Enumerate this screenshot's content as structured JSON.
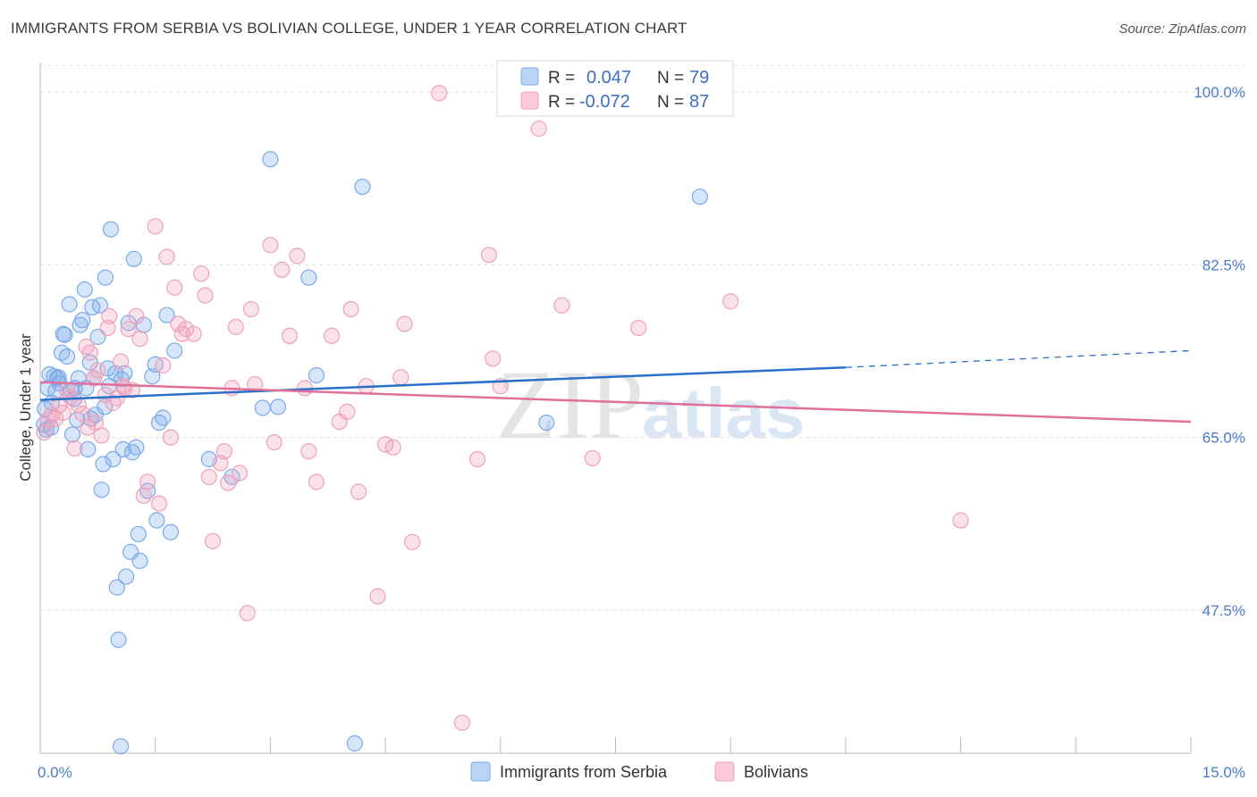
{
  "title": "IMMIGRANTS FROM SERBIA VS BOLIVIAN COLLEGE, UNDER 1 YEAR CORRELATION CHART",
  "source": "Source: ZipAtlas.com",
  "watermark": {
    "zip": "ZIP",
    "atlas": "atlas"
  },
  "chart_data": {
    "type": "scatter",
    "xlabel": "",
    "ylabel": "College, Under 1 year",
    "xlim": [
      0,
      15
    ],
    "ylim": [
      33,
      103
    ],
    "x_tick_labels": [
      {
        "value": 0,
        "label": "0.0%"
      },
      {
        "value": 15,
        "label": "15.0%"
      }
    ],
    "x_minor_ticks": [
      0,
      1.5,
      3,
      4.5,
      6,
      7.5,
      9,
      10.5,
      12,
      13.5,
      15
    ],
    "y_ticks": [
      {
        "value": 100,
        "label": "100.0%"
      },
      {
        "value": 82.5,
        "label": "82.5%"
      },
      {
        "value": 65,
        "label": "65.0%"
      },
      {
        "value": 47.5,
        "label": "47.5%"
      }
    ],
    "y_gridlines": [
      100,
      82.5,
      65,
      47.5
    ],
    "grid": true,
    "stats": [
      {
        "series": "Immigrants from Serbia",
        "r_label": "R =",
        "r": "0.047",
        "n_label": "N =",
        "n": "79",
        "color": "#7aaae8"
      },
      {
        "series": "Bolivians",
        "r_label": "R =",
        "r": "-0.072",
        "n_label": "N =",
        "n": "87",
        "color": "#f0a0ba"
      }
    ],
    "series": [
      {
        "name": "Immigrants from Serbia",
        "color": "#7aaae8",
        "line_color": "#2a6fc9",
        "trend": {
          "x0": 0,
          "y0": 68.8,
          "x1": 10.5,
          "y1": 72.1,
          "dash_to_x": 15,
          "dash_to_y": 73.8
        },
        "points": [
          [
            0.05,
            66.3
          ],
          [
            0.08,
            65.8
          ],
          [
            0.1,
            70.0
          ],
          [
            0.12,
            71.4
          ],
          [
            0.15,
            68.5
          ],
          [
            0.18,
            71.2
          ],
          [
            0.2,
            69.7
          ],
          [
            0.22,
            71.0
          ],
          [
            0.25,
            70.5
          ],
          [
            0.28,
            73.6
          ],
          [
            0.3,
            75.5
          ],
          [
            0.32,
            75.4
          ],
          [
            0.35,
            73.2
          ],
          [
            0.38,
            78.5
          ],
          [
            0.4,
            69.8
          ],
          [
            0.42,
            65.3
          ],
          [
            0.45,
            70.0
          ],
          [
            0.48,
            66.8
          ],
          [
            0.5,
            71.0
          ],
          [
            0.52,
            76.4
          ],
          [
            0.55,
            76.9
          ],
          [
            0.58,
            80.0
          ],
          [
            0.6,
            70.0
          ],
          [
            0.62,
            63.8
          ],
          [
            0.65,
            72.6
          ],
          [
            0.68,
            78.2
          ],
          [
            0.7,
            71.0
          ],
          [
            0.72,
            67.3
          ],
          [
            0.75,
            75.2
          ],
          [
            0.78,
            78.4
          ],
          [
            0.8,
            59.7
          ],
          [
            0.82,
            62.3
          ],
          [
            0.85,
            81.2
          ],
          [
            0.88,
            72.0
          ],
          [
            0.9,
            70.2
          ],
          [
            0.92,
            86.1
          ],
          [
            0.95,
            62.8
          ],
          [
            0.98,
            71.5
          ],
          [
            1.0,
            49.8
          ],
          [
            1.02,
            44.5
          ],
          [
            1.05,
            33.7
          ],
          [
            1.08,
            63.8
          ],
          [
            1.1,
            71.5
          ],
          [
            1.12,
            50.9
          ],
          [
            1.15,
            76.6
          ],
          [
            1.18,
            53.4
          ],
          [
            1.2,
            63.5
          ],
          [
            1.22,
            83.1
          ],
          [
            1.25,
            64.0
          ],
          [
            1.28,
            55.2
          ],
          [
            1.3,
            52.5
          ],
          [
            1.35,
            76.4
          ],
          [
            1.4,
            59.6
          ],
          [
            1.5,
            72.4
          ],
          [
            1.52,
            56.6
          ],
          [
            1.55,
            66.5
          ],
          [
            1.6,
            67.0
          ],
          [
            1.65,
            77.4
          ],
          [
            1.7,
            55.4
          ],
          [
            1.75,
            73.8
          ],
          [
            2.2,
            62.8
          ],
          [
            2.5,
            61.0
          ],
          [
            2.9,
            68.0
          ],
          [
            3.0,
            93.2
          ],
          [
            3.1,
            68.1
          ],
          [
            3.5,
            81.2
          ],
          [
            3.6,
            71.3
          ],
          [
            4.1,
            34.0
          ],
          [
            4.2,
            90.4
          ],
          [
            6.6,
            66.5
          ],
          [
            8.6,
            89.4
          ],
          [
            0.06,
            67.9
          ],
          [
            0.14,
            66.0
          ],
          [
            0.24,
            71.1
          ],
          [
            0.44,
            68.9
          ],
          [
            0.66,
            66.9
          ],
          [
            0.84,
            68.1
          ],
          [
            1.06,
            70.9
          ],
          [
            1.46,
            71.2
          ]
        ]
      },
      {
        "name": "Bolivians",
        "color": "#f0a0ba",
        "line_color": "#e0709a",
        "trend": {
          "x0": 0,
          "y0": 70.6,
          "x1": 15,
          "y1": 66.6
        },
        "points": [
          [
            0.05,
            65.5
          ],
          [
            0.1,
            66.8
          ],
          [
            0.15,
            67.3
          ],
          [
            0.2,
            66.9
          ],
          [
            0.25,
            68.3
          ],
          [
            0.3,
            67.5
          ],
          [
            0.35,
            69.8
          ],
          [
            0.4,
            69.1
          ],
          [
            0.45,
            63.9
          ],
          [
            0.5,
            68.3
          ],
          [
            0.55,
            67.4
          ],
          [
            0.6,
            74.2
          ],
          [
            0.62,
            66.0
          ],
          [
            0.65,
            73.6
          ],
          [
            0.7,
            71.0
          ],
          [
            0.72,
            66.5
          ],
          [
            0.75,
            71.8
          ],
          [
            0.8,
            65.2
          ],
          [
            0.85,
            69.3
          ],
          [
            0.88,
            76.1
          ],
          [
            0.9,
            77.3
          ],
          [
            0.95,
            68.5
          ],
          [
            1.0,
            69.0
          ],
          [
            1.05,
            72.7
          ],
          [
            1.08,
            70.2
          ],
          [
            1.1,
            70.0
          ],
          [
            1.15,
            76.0
          ],
          [
            1.2,
            69.8
          ],
          [
            1.25,
            77.3
          ],
          [
            1.3,
            75.0
          ],
          [
            1.35,
            59.1
          ],
          [
            1.4,
            60.5
          ],
          [
            1.5,
            86.4
          ],
          [
            1.55,
            58.3
          ],
          [
            1.6,
            72.3
          ],
          [
            1.65,
            83.3
          ],
          [
            1.7,
            65.0
          ],
          [
            1.75,
            80.2
          ],
          [
            1.8,
            76.5
          ],
          [
            1.85,
            75.5
          ],
          [
            1.9,
            76.0
          ],
          [
            2.0,
            75.5
          ],
          [
            2.1,
            81.6
          ],
          [
            2.15,
            79.4
          ],
          [
            2.2,
            61.0
          ],
          [
            2.25,
            54.5
          ],
          [
            2.35,
            62.4
          ],
          [
            2.4,
            63.6
          ],
          [
            2.45,
            60.4
          ],
          [
            2.5,
            70.0
          ],
          [
            2.55,
            76.2
          ],
          [
            2.6,
            61.4
          ],
          [
            2.7,
            47.2
          ],
          [
            2.75,
            78.0
          ],
          [
            2.8,
            70.4
          ],
          [
            3.0,
            84.5
          ],
          [
            3.05,
            64.5
          ],
          [
            3.15,
            82.0
          ],
          [
            3.25,
            75.3
          ],
          [
            3.35,
            83.4
          ],
          [
            3.45,
            70.0
          ],
          [
            3.5,
            63.6
          ],
          [
            3.6,
            60.5
          ],
          [
            3.8,
            75.3
          ],
          [
            3.9,
            66.6
          ],
          [
            4.0,
            67.6
          ],
          [
            4.05,
            78.0
          ],
          [
            4.15,
            59.5
          ],
          [
            4.25,
            70.2
          ],
          [
            4.4,
            48.9
          ],
          [
            4.5,
            64.3
          ],
          [
            4.6,
            64.0
          ],
          [
            4.7,
            71.1
          ],
          [
            4.75,
            76.5
          ],
          [
            4.85,
            54.4
          ],
          [
            5.2,
            99.9
          ],
          [
            5.5,
            36.1
          ],
          [
            5.7,
            62.8
          ],
          [
            5.85,
            83.5
          ],
          [
            5.9,
            73.0
          ],
          [
            6.0,
            70.2
          ],
          [
            6.5,
            96.3
          ],
          [
            6.8,
            78.4
          ],
          [
            7.2,
            62.9
          ],
          [
            7.8,
            76.1
          ],
          [
            9.0,
            78.8
          ],
          [
            12.0,
            56.6
          ]
        ]
      }
    ]
  },
  "legend": [
    {
      "label": "Immigrants from Serbia",
      "color": "#7aaae8"
    },
    {
      "label": "Bolivians",
      "color": "#f0a0ba"
    }
  ]
}
